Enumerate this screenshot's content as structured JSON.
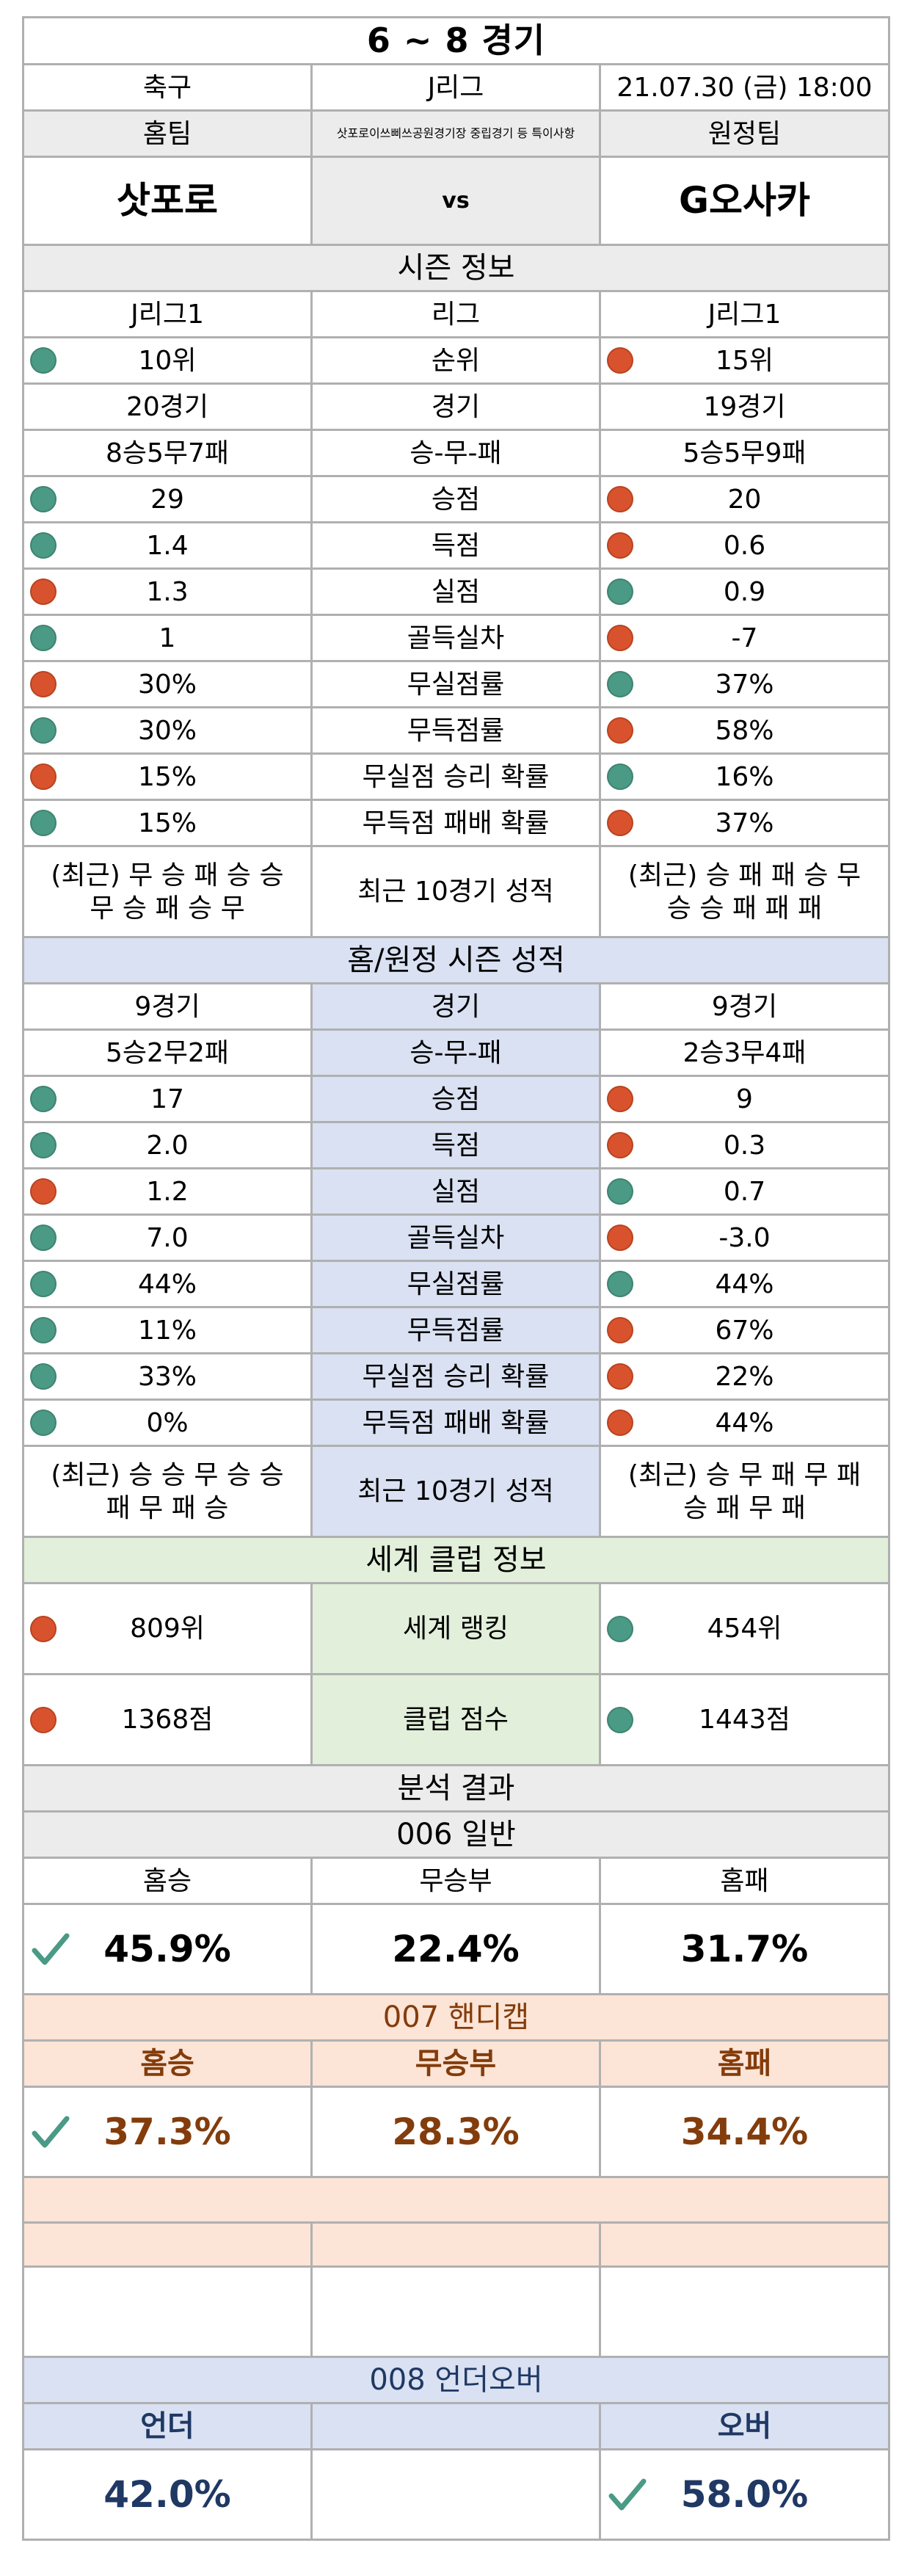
{
  "header": {
    "title": "6 ~ 8 경기",
    "sport": "축구",
    "league": "J리그",
    "datetime": "21.07.30 (금) 18:00",
    "home_label": "홈팀",
    "note": "삿포로이쓰삐쓰공원경기장 중립경기 등 특이사항",
    "away_label": "원정팀",
    "home_team": "삿포로",
    "vs": "vs",
    "away_team": "G오사카"
  },
  "season": {
    "title": "시즌 정보",
    "rows": [
      {
        "home": "J리그1",
        "label": "리그",
        "away": "J리그1",
        "hd": "",
        "ad": ""
      },
      {
        "home": "10위",
        "label": "순위",
        "away": "15위",
        "hd": "green",
        "ad": "red"
      },
      {
        "home": "20경기",
        "label": "경기",
        "away": "19경기",
        "hd": "",
        "ad": ""
      },
      {
        "home": "8승5무7패",
        "label": "승-무-패",
        "away": "5승5무9패",
        "hd": "",
        "ad": ""
      },
      {
        "home": "29",
        "label": "승점",
        "away": "20",
        "hd": "green",
        "ad": "red"
      },
      {
        "home": "1.4",
        "label": "득점",
        "away": "0.6",
        "hd": "green",
        "ad": "red"
      },
      {
        "home": "1.3",
        "label": "실점",
        "away": "0.9",
        "hd": "red",
        "ad": "green"
      },
      {
        "home": "1",
        "label": "골득실차",
        "away": "-7",
        "hd": "green",
        "ad": "red"
      },
      {
        "home": "30%",
        "label": "무실점률",
        "away": "37%",
        "hd": "red",
        "ad": "green"
      },
      {
        "home": "30%",
        "label": "무득점률",
        "away": "58%",
        "hd": "green",
        "ad": "red"
      },
      {
        "home": "15%",
        "label": "무실점 승리 확률",
        "away": "16%",
        "hd": "red",
        "ad": "green"
      },
      {
        "home": "15%",
        "label": "무득점 패배 확률",
        "away": "37%",
        "hd": "green",
        "ad": "red"
      }
    ],
    "recent": {
      "home_line1": "(최근) 무 승 패 승 승",
      "home_line2": "무 승 패 승 무",
      "label": "최근 10경기 성적",
      "away_line1": "(최근) 승 패 패 승 무",
      "away_line2": "승 승 패 패 패"
    }
  },
  "homeaway": {
    "title": "홈/원정 시즌 성적",
    "rows": [
      {
        "home": "9경기",
        "label": "경기",
        "away": "9경기",
        "hd": "",
        "ad": ""
      },
      {
        "home": "5승2무2패",
        "label": "승-무-패",
        "away": "2승3무4패",
        "hd": "",
        "ad": ""
      },
      {
        "home": "17",
        "label": "승점",
        "away": "9",
        "hd": "green",
        "ad": "red"
      },
      {
        "home": "2.0",
        "label": "득점",
        "away": "0.3",
        "hd": "green",
        "ad": "red"
      },
      {
        "home": "1.2",
        "label": "실점",
        "away": "0.7",
        "hd": "red",
        "ad": "green"
      },
      {
        "home": "7.0",
        "label": "골득실차",
        "away": "-3.0",
        "hd": "green",
        "ad": "red"
      },
      {
        "home": "44%",
        "label": "무실점률",
        "away": "44%",
        "hd": "green",
        "ad": "green"
      },
      {
        "home": "11%",
        "label": "무득점률",
        "away": "67%",
        "hd": "green",
        "ad": "red"
      },
      {
        "home": "33%",
        "label": "무실점 승리 확률",
        "away": "22%",
        "hd": "green",
        "ad": "red"
      },
      {
        "home": "0%",
        "label": "무득점 패배 확률",
        "away": "44%",
        "hd": "green",
        "ad": "red"
      }
    ],
    "recent": {
      "home_line1": "(최근) 승 승 무 승 승",
      "home_line2": "패 무 패 승",
      "label": "최근 10경기 성적",
      "away_line1": "(최근) 승 무 패 무 패",
      "away_line2": "승 패 무 패"
    }
  },
  "world": {
    "title": "세계 클럽 정보",
    "rows": [
      {
        "home": "809위",
        "label": "세계 랭킹",
        "away": "454위",
        "hd": "red",
        "ad": "green"
      },
      {
        "home": "1368점",
        "label": "클럽 점수",
        "away": "1443점",
        "hd": "red",
        "ad": "green"
      }
    ]
  },
  "analysis": {
    "title": "분석 결과",
    "general": {
      "title": "006 일반",
      "headers": [
        "홈승",
        "무승부",
        "홈패"
      ],
      "values": [
        "45.9%",
        "22.4%",
        "31.7%"
      ],
      "checked": 0
    },
    "handicap": {
      "title": "007 핸디캡",
      "headers": [
        "홈승",
        "무승부",
        "홈패"
      ],
      "values": [
        "37.3%",
        "28.3%",
        "34.4%"
      ],
      "checked": 0
    },
    "underover": {
      "title": "008 언더오버",
      "headers": [
        "언더",
        "",
        "오버"
      ],
      "values": [
        "42.0%",
        "",
        "58.0%"
      ],
      "checked": 2
    }
  },
  "colors": {
    "grid": "#b0b0b0",
    "gray": "#ececec",
    "blue": "#d9e1f2",
    "green": "#e2efda",
    "peach": "#fce4d6",
    "dot_green": "#4a9a85",
    "dot_red": "#d9522e",
    "check": "#4a9a85",
    "brown_text": "#833c0b",
    "navy_text": "#1f3864"
  }
}
